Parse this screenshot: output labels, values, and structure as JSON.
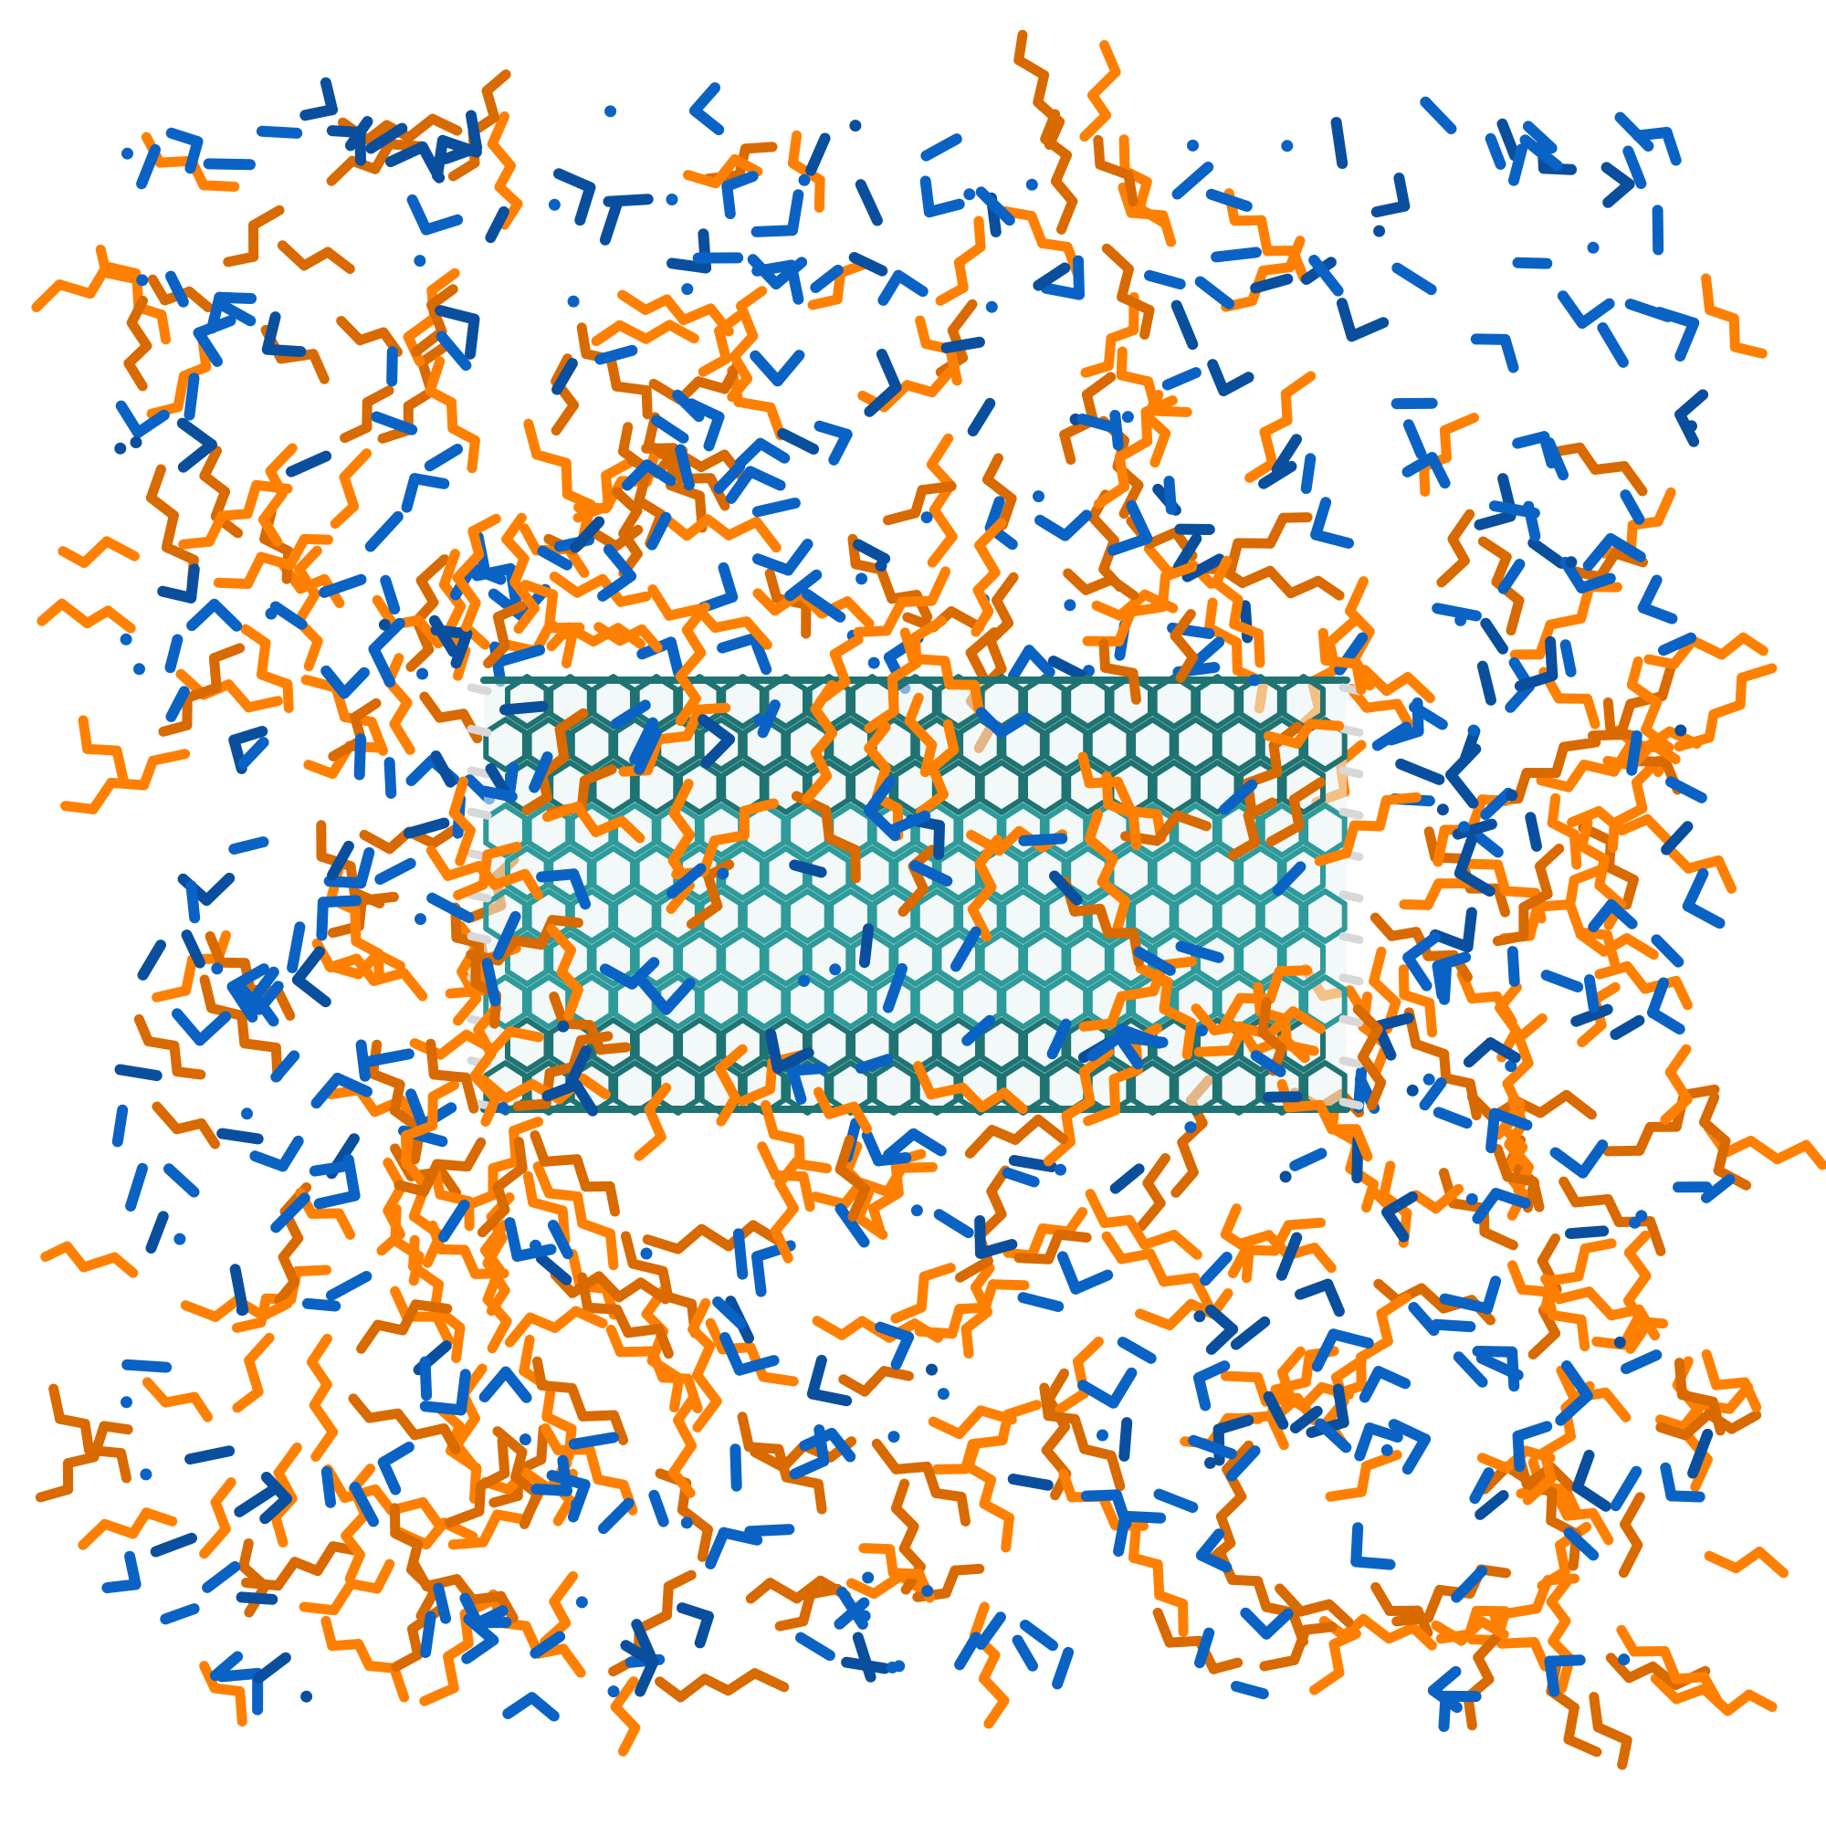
{
  "scene": {
    "background": "#ffffff",
    "colors": {
      "orange_molecule": "#ff8000",
      "orange_shade": "#d96a00",
      "blue_molecule": "#0a63c4",
      "blue_shade": "#0a4f9e",
      "nanotube": "#2e9a9a",
      "nanotube_shade": "#1f7373",
      "hydrogen_cap": "#d8d8d8"
    },
    "nanotube": {
      "name": "carbon-nanotube",
      "rings_across": 20,
      "rings_down": 10
    },
    "solvent": {
      "orange_count": 420,
      "blue_count": 520
    }
  }
}
